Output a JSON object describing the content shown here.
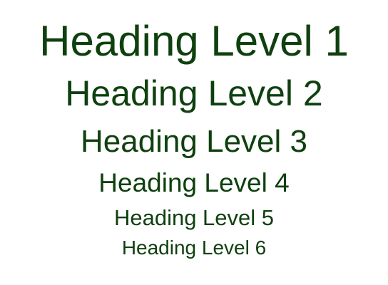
{
  "colors": {
    "heading_text": "#0f400f",
    "background": "#ffffff"
  },
  "headings": [
    {
      "level": 1,
      "text": "Heading Level 1"
    },
    {
      "level": 2,
      "text": "Heading Level 2"
    },
    {
      "level": 3,
      "text": "Heading Level 3"
    },
    {
      "level": 4,
      "text": "Heading Level 4"
    },
    {
      "level": 5,
      "text": "Heading Level 5"
    },
    {
      "level": 6,
      "text": "Heading Level 6"
    }
  ]
}
